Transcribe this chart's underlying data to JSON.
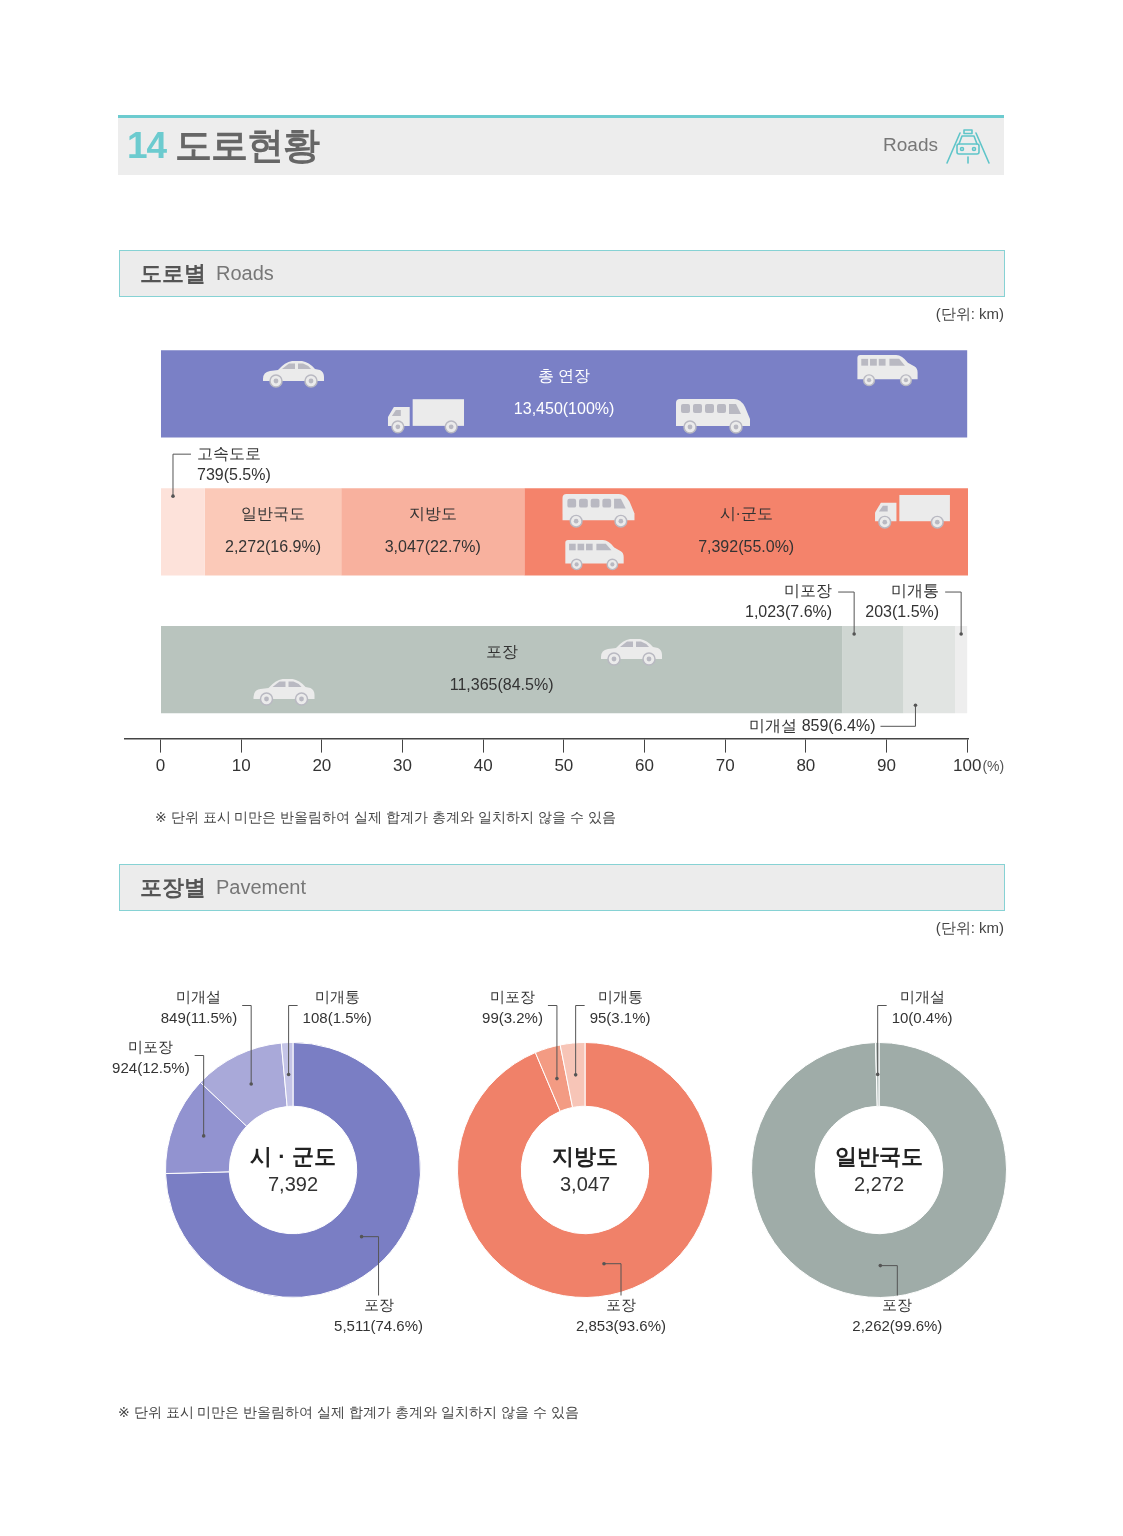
{
  "chart_data": [
    {
      "type": "other",
      "title": "14 도로현황",
      "subtitle": "Roads"
    },
    {
      "type": "bar",
      "title": "도로별",
      "subtitle": "Roads",
      "orientation": "horizontal",
      "stacked": true,
      "categories": [
        null,
        null,
        null
      ],
      "series": [
        {
          "name": "총 연장",
          "color": "#7a80c6",
          "values": [
            100,
            null,
            null
          ],
          "value_labels": [
            "13,450(100%)",
            null,
            null
          ]
        },
        {
          "name": "고속도로",
          "color": "#fde2da",
          "values": [
            null,
            5.5,
            null
          ],
          "value_labels": [
            null,
            "739(5.5%)",
            null
          ]
        },
        {
          "name": "일반국도",
          "color": "#fbc9b8",
          "values": [
            null,
            16.9,
            null
          ],
          "value_labels": [
            null,
            "2,272(16.9%)",
            null
          ]
        },
        {
          "name": "지방도",
          "color": "#f8b19e",
          "values": [
            null,
            22.7,
            null
          ],
          "value_labels": [
            null,
            "3,047(22.7%)",
            null
          ]
        },
        {
          "name": "시·군도",
          "color": "#f4836b",
          "values": [
            null,
            55.0,
            null
          ],
          "value_labels": [
            null,
            "7,392(55.0%)",
            null
          ]
        },
        {
          "name": "포장",
          "color": "#b9c4be",
          "values": [
            null,
            null,
            84.5
          ],
          "value_labels": [
            null,
            null,
            "11,365(84.5%)"
          ]
        },
        {
          "name": "미포장",
          "color": "#cfd6d2",
          "values": [
            null,
            null,
            7.6
          ],
          "value_labels": [
            null,
            null,
            "1,023(7.6%)"
          ]
        },
        {
          "name": "미개설",
          "color": "#e1e4e2",
          "values": [
            null,
            null,
            6.4
          ],
          "value_labels": [
            null,
            null,
            "859(6.4%)"
          ]
        },
        {
          "name": "미개통",
          "color": "#eeeeee",
          "values": [
            null,
            null,
            1.5
          ],
          "value_labels": [
            null,
            null,
            "203(1.5%)"
          ]
        }
      ],
      "xlim": [
        -4.4,
        100.1
      ],
      "xticks": [
        0,
        10,
        20,
        30,
        40,
        50,
        60,
        70,
        80,
        90,
        100
      ],
      "xlabel": "(%)",
      "annotations": [
        "(단위: km)",
        "※ 단위 표시 미만은 반올림하여 실제 합계가 총계와 일치하지 않을 수 있음"
      ]
    },
    {
      "type": "other",
      "title": "포장별",
      "subtitle": "Pavement",
      "annotations": [
        "(단위: km)",
        "※ 단위 표시 미만은 반올림하여 실제 합계가 총계와 일치하지 않을 수 있음"
      ]
    },
    {
      "type": "donut",
      "title": "시 · 군도",
      "subtitle": "7,392",
      "categories": [
        "포장",
        "미포장",
        "미개설",
        "미개통"
      ],
      "values": [
        5511,
        924,
        849,
        108
      ],
      "colors": [
        "#7a7ec4",
        "#9293d0",
        "#a9a9d9",
        "#c4c4e7"
      ],
      "value_labels": [
        "5,511(74.6%)",
        "924(12.5%)",
        "849(11.5%)",
        "108(1.5%)"
      ]
    },
    {
      "type": "donut",
      "title": "지방도",
      "subtitle": "3,047",
      "categories": [
        "포장",
        "미포장",
        "미개통"
      ],
      "values": [
        2853,
        99,
        95
      ],
      "colors": [
        "#f08169",
        "#f39b83",
        "#f7c5b7"
      ],
      "value_labels": [
        "2,853(93.6%)",
        "99(3.2%)",
        "95(3.1%)"
      ]
    },
    {
      "type": "donut",
      "title": "일반국도",
      "subtitle": "2,272",
      "categories": [
        "포장",
        "미개설"
      ],
      "values": [
        2262,
        10
      ],
      "colors": [
        "#9faca8",
        "#b3bebb"
      ],
      "value_labels": [
        "2,262(99.6%)",
        "10(0.4%)"
      ]
    }
  ]
}
